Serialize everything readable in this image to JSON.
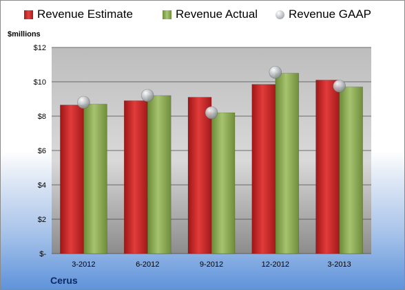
{
  "chart_data": {
    "type": "bar",
    "title": "",
    "ylabel": "$millions",
    "ylim": [
      0,
      12
    ],
    "yticks": [
      "$-",
      "$2",
      "$4",
      "$6",
      "$8",
      "$10",
      "$12"
    ],
    "categories": [
      "3-2012",
      "6-2012",
      "9-2012",
      "12-2012",
      "3-2013"
    ],
    "series": [
      {
        "name": "Revenue Estimate",
        "type": "bar",
        "color": "#d42a2a",
        "values": [
          8.65,
          8.9,
          9.1,
          9.85,
          10.1
        ]
      },
      {
        "name": "Revenue Actual",
        "type": "bar",
        "color": "#8faf58",
        "values": [
          8.7,
          9.2,
          8.2,
          10.5,
          9.7
        ]
      },
      {
        "name": "Revenue GAAP",
        "type": "scatter",
        "color": "#b8bcc2",
        "values": [
          8.8,
          9.2,
          8.2,
          10.55,
          9.75
        ]
      }
    ],
    "grid": true,
    "legend_position": "top"
  },
  "footer": {
    "company": "Cerus"
  }
}
